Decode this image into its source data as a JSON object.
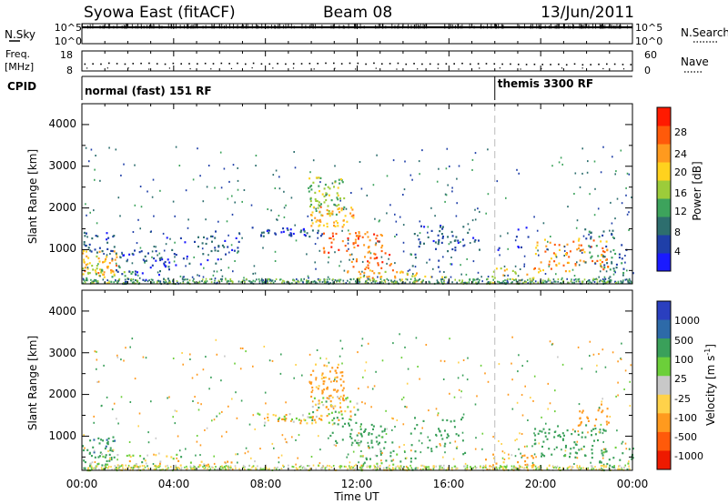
{
  "header": {
    "title": "Syowa East (fitACF)",
    "beam": "Beam 08",
    "date": "13/Jun/2011"
  },
  "sky_panel": {
    "left_label": "N.Sky",
    "right_label": "N.Search",
    "left_ticks": [
      "10^5",
      "10^0"
    ],
    "right_ticks": [
      "10^5",
      "10^0"
    ]
  },
  "freq_panel": {
    "left_label_1": "Freq.",
    "left_label_2": "[MHz]",
    "right_label": "Nave",
    "left_ticks": [
      "18",
      "8"
    ],
    "right_ticks": [
      "60",
      "0"
    ]
  },
  "cpid": {
    "label": "CPID",
    "segment_1": "normal (fast) 151 RF",
    "segment_2": "themis 3300 RF",
    "switch_time_hours": 18.0
  },
  "power_panel": {
    "ylabel": "Slant Range [km]",
    "y_ticks": [
      "4000",
      "3000",
      "2000",
      "1000"
    ],
    "colorbar_title": "Power [dB]",
    "colorbar_ticks": [
      "28",
      "24",
      "20",
      "16",
      "12",
      "8",
      "4"
    ],
    "colorbar_colors": [
      "#1a1aff",
      "#1f3fa8",
      "#2d6e6e",
      "#3da35c",
      "#9ccc3a",
      "#ffd21e",
      "#ff9a1e",
      "#ff5a0a",
      "#ff1a00"
    ]
  },
  "velocity_panel": {
    "ylabel": "Slant Range [km]",
    "y_ticks": [
      "4000",
      "3000",
      "2000",
      "1000"
    ],
    "colorbar_title": "Velocity [m s",
    "colorbar_sup": "-1",
    "colorbar_unit_end": "]",
    "colorbar_ticks": [
      "1000",
      "500",
      "100",
      "25",
      "-25",
      "-100",
      "-500",
      "-1000"
    ],
    "colorbar_colors": [
      "#2a3fbf",
      "#2d6aa8",
      "#3aa05a",
      "#6ccf3a",
      "#c8c8c8",
      "#ffd24a",
      "#ff9a1e",
      "#ff5a0a",
      "#ee1a00"
    ]
  },
  "x_axis": {
    "label": "Time UT",
    "ticks": [
      "00:00",
      "04:00",
      "08:00",
      "12:00",
      "16:00",
      "20:00",
      "00:00"
    ]
  },
  "chart_data": [
    {
      "type": "line",
      "name": "sky-noise",
      "x_range_hours": [
        0,
        24
      ],
      "ylim_log10": [
        0,
        5
      ],
      "x_hours": [
        0,
        2,
        4,
        6,
        8,
        10,
        12,
        14,
        16,
        18,
        20,
        22,
        24
      ],
      "values_log10": [
        4.1,
        4.1,
        4.1,
        4.1,
        4.1,
        4.1,
        4.1,
        4.1,
        4.1,
        4.1,
        4.1,
        4.1,
        4.1
      ]
    },
    {
      "type": "scatter",
      "name": "frequency",
      "x_range_hours": [
        0,
        24
      ],
      "ylim": [
        8,
        18
      ],
      "x_hours": [
        0,
        2,
        4,
        6,
        8,
        10,
        12,
        14,
        16,
        18,
        20,
        22,
        24
      ],
      "values_mhz": [
        12,
        12,
        12,
        12,
        12,
        12,
        12,
        12,
        12,
        11.6,
        11.6,
        11.6,
        11.6
      ]
    },
    {
      "type": "heatmap",
      "name": "power",
      "x_range_hours": [
        0,
        24
      ],
      "ylim_km": [
        180,
        4500
      ],
      "zlim_db": [
        0,
        30
      ],
      "blobs": [
        {
          "t": 0.8,
          "km": 700,
          "dt": 0.9,
          "dkm": 300,
          "db": 20,
          "p": 0.8
        },
        {
          "t": 0.7,
          "km": 1200,
          "dt": 0.8,
          "dkm": 250,
          "db": 6,
          "p": 0.6
        },
        {
          "t": 1.0,
          "km": 400,
          "dt": 1.2,
          "dkm": 200,
          "db": 14,
          "p": 0.6
        },
        {
          "t": 2.5,
          "km": 600,
          "dt": 1.3,
          "dkm": 400,
          "db": 5,
          "p": 0.35
        },
        {
          "t": 4.5,
          "km": 1000,
          "dt": 1.5,
          "dkm": 400,
          "db": 5,
          "p": 0.25
        },
        {
          "t": 6.2,
          "km": 1200,
          "dt": 0.8,
          "dkm": 300,
          "db": 6,
          "p": 0.3
        },
        {
          "t": 9.0,
          "km": 1450,
          "dt": 1.6,
          "dkm": 120,
          "db": 6,
          "p": 0.8
        },
        {
          "t": 10.6,
          "km": 2300,
          "dt": 0.8,
          "dkm": 450,
          "db": 14,
          "p": 0.75
        },
        {
          "t": 10.9,
          "km": 1800,
          "dt": 1.0,
          "dkm": 250,
          "db": 20,
          "p": 0.8
        },
        {
          "t": 11.8,
          "km": 1200,
          "dt": 1.3,
          "dkm": 250,
          "db": 24,
          "p": 0.7
        },
        {
          "t": 12.5,
          "km": 700,
          "dt": 1.0,
          "dkm": 250,
          "db": 24,
          "p": 0.5
        },
        {
          "t": 13.3,
          "km": 400,
          "dt": 1.3,
          "dkm": 150,
          "db": 20,
          "p": 0.6
        },
        {
          "t": 14.8,
          "km": 300,
          "dt": 1.2,
          "dkm": 120,
          "db": 18,
          "p": 0.4
        },
        {
          "t": 15.4,
          "km": 1100,
          "dt": 1.1,
          "dkm": 500,
          "db": 6,
          "p": 0.25
        },
        {
          "t": 18.8,
          "km": 380,
          "dt": 1.2,
          "dkm": 200,
          "db": 18,
          "p": 0.5
        },
        {
          "t": 17.5,
          "km": 1300,
          "dt": 2.0,
          "dkm": 300,
          "db": 5,
          "p": 0.2
        },
        {
          "t": 21.3,
          "km": 900,
          "dt": 1.6,
          "dkm": 400,
          "db": 22,
          "p": 0.5
        },
        {
          "t": 22.8,
          "km": 1100,
          "dt": 1.0,
          "dkm": 450,
          "db": 8,
          "p": 0.35
        },
        {
          "t": 23.4,
          "km": 400,
          "dt": 0.7,
          "dkm": 250,
          "db": 8,
          "p": 0.4
        }
      ]
    },
    {
      "type": "heatmap",
      "name": "velocity",
      "x_range_hours": [
        0,
        24
      ],
      "ylim_km": [
        180,
        4500
      ],
      "zlim_ms": [
        -1000,
        1000
      ],
      "blobs": [
        {
          "t": 0.6,
          "km": 700,
          "dt": 0.8,
          "dkm": 300,
          "v": 400,
          "p": 0.8
        },
        {
          "t": 0.5,
          "km": 400,
          "dt": 0.8,
          "dkm": 200,
          "v": 100,
          "p": 0.6
        },
        {
          "t": 2.5,
          "km": 400,
          "dt": 1.8,
          "dkm": 200,
          "v": -25,
          "p": 0.35
        },
        {
          "t": 4.5,
          "km": 300,
          "dt": 2.0,
          "dkm": 150,
          "v": -100,
          "p": 0.35
        },
        {
          "t": 9.2,
          "km": 1450,
          "dt": 1.6,
          "dkm": 120,
          "v": -50,
          "p": 0.85
        },
        {
          "t": 10.6,
          "km": 2300,
          "dt": 0.8,
          "dkm": 450,
          "v": -200,
          "p": 0.7
        },
        {
          "t": 11.0,
          "km": 1700,
          "dt": 1.0,
          "dkm": 300,
          "v": 0,
          "p": 0.75
        },
        {
          "t": 12.0,
          "km": 1100,
          "dt": 1.2,
          "dkm": 250,
          "v": 300,
          "p": 0.6
        },
        {
          "t": 12.8,
          "km": 700,
          "dt": 0.9,
          "dkm": 200,
          "v": 150,
          "p": 0.5
        },
        {
          "t": 13.4,
          "km": 350,
          "dt": 1.3,
          "dkm": 150,
          "v": 200,
          "p": 0.5
        },
        {
          "t": 15.5,
          "km": 1000,
          "dt": 1.2,
          "dkm": 500,
          "v": 300,
          "p": 0.25
        },
        {
          "t": 18.5,
          "km": 400,
          "dt": 1.2,
          "dkm": 200,
          "v": -150,
          "p": 0.5
        },
        {
          "t": 21.3,
          "km": 900,
          "dt": 1.6,
          "dkm": 400,
          "v": 250,
          "p": 0.5
        },
        {
          "t": 22.2,
          "km": 1500,
          "dt": 0.8,
          "dkm": 300,
          "v": -300,
          "p": 0.4
        },
        {
          "t": 23.3,
          "km": 500,
          "dt": 0.8,
          "dkm": 300,
          "v": 200,
          "p": 0.45
        }
      ]
    }
  ]
}
